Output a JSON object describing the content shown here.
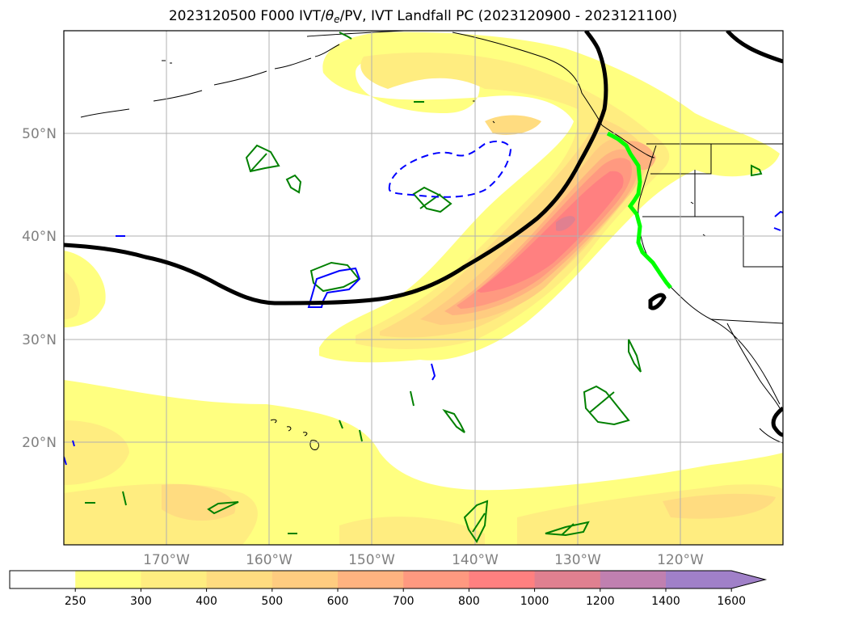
{
  "title": {
    "prefix": "2023120500 F000 IVT/",
    "theta": "θ",
    "theta_sub": "e",
    "suffix": "/PV, IVT Landfall PC (2023120900 - 2023121100)"
  },
  "map": {
    "lon_range": [
      -180,
      -110
    ],
    "lat_range": [
      10,
      60
    ],
    "lon_ticks": [
      {
        "value": -170,
        "label": "170°W"
      },
      {
        "value": -160,
        "label": "160°W"
      },
      {
        "value": -150,
        "label": "150°W"
      },
      {
        "value": -140,
        "label": "140°W"
      },
      {
        "value": -130,
        "label": "130°W"
      },
      {
        "value": -120,
        "label": "120°W"
      }
    ],
    "lat_ticks": [
      {
        "value": 50,
        "label": "50°N"
      },
      {
        "value": 40,
        "label": "40°N"
      },
      {
        "value": 30,
        "label": "30°N"
      },
      {
        "value": 20,
        "label": "20°N"
      }
    ],
    "grid": true
  },
  "colorbar": {
    "levels": [
      "250",
      "300",
      "400",
      "500",
      "600",
      "700",
      "800",
      "1000",
      "1200",
      "1400",
      "1600"
    ],
    "colors": [
      "#ffffff",
      "#ffff80",
      "#ffed80",
      "#ffdc80",
      "#ffcc80",
      "#ffb380",
      "#ff9980",
      "#ff8080",
      "#e08090",
      "#c080b0",
      "#a080c8",
      "#a080c8"
    ],
    "extend": "max"
  },
  "colors": {
    "theta_e_contour": "#000000",
    "pv_positive": "#008000",
    "pv_negative": "#0000ff",
    "landfall_line": "#00ff00",
    "grid": "#b0b0b0",
    "coast": "#000000"
  }
}
